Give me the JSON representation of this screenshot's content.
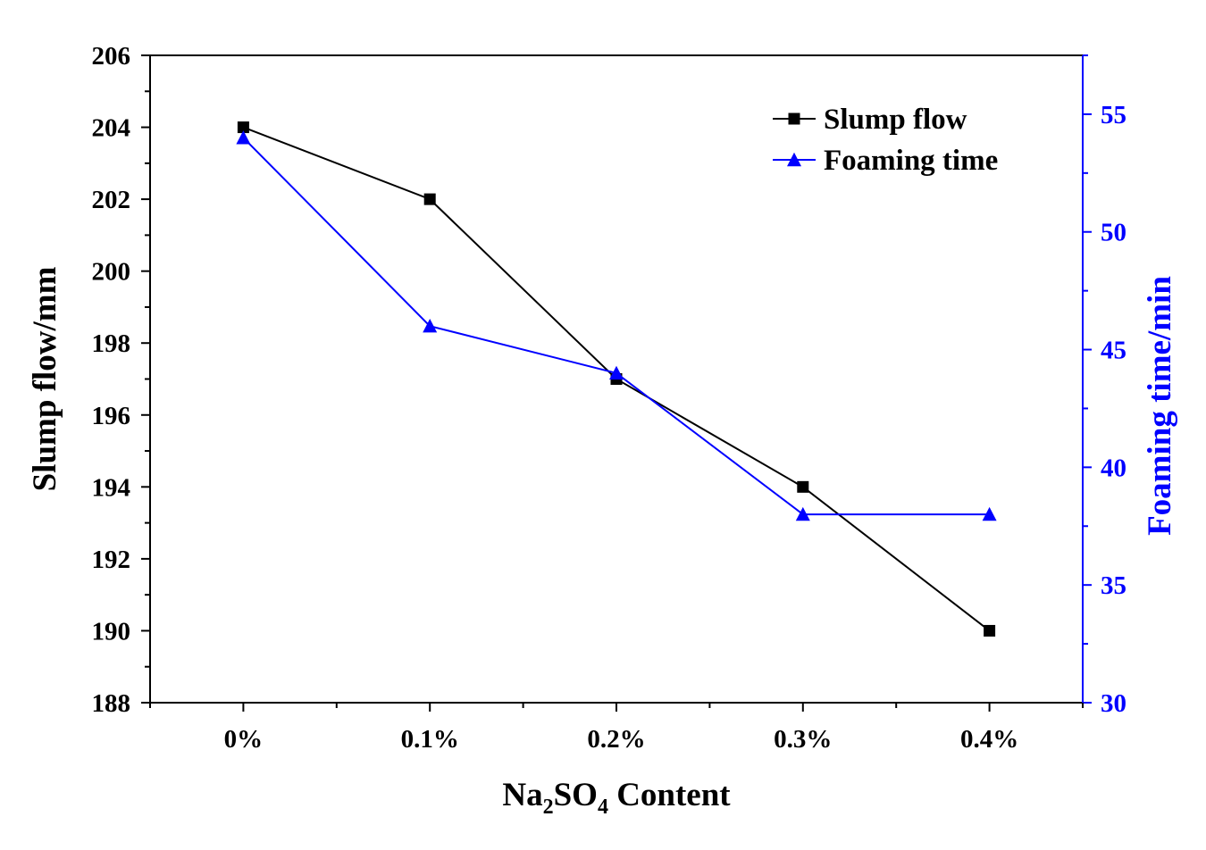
{
  "chart_data": {
    "type": "line",
    "title": "",
    "categories": [
      "0%",
      "0.1%",
      "0.2%",
      "0.3%",
      "0.4%"
    ],
    "x": [
      0,
      0.1,
      0.2,
      0.3,
      0.4
    ],
    "xlim": [
      -0.05,
      0.45
    ],
    "xlabel": {
      "main": "Na",
      "sub1": "2",
      "mid": "SO",
      "sub2": "4",
      "tail": " Content"
    },
    "left_axis": {
      "label": "Slump flow/mm",
      "ylim": [
        188,
        206
      ],
      "ticks": [
        188,
        190,
        192,
        194,
        196,
        198,
        200,
        202,
        204,
        206
      ],
      "minor_step": 1,
      "color": "#000000"
    },
    "right_axis": {
      "label": "Foaming time/min",
      "ylim": [
        30,
        57.5
      ],
      "ticks": [
        30,
        35,
        40,
        45,
        50,
        55
      ],
      "minor_step": 2.5,
      "color": "#0000ff"
    },
    "series": [
      {
        "name": "Slump flow",
        "axis": "left",
        "marker": "square",
        "color": "#000000",
        "values": [
          204,
          202,
          197,
          194,
          190
        ]
      },
      {
        "name": "Foaming time",
        "axis": "right",
        "marker": "triangle",
        "color": "#0000ff",
        "values": [
          54,
          46,
          44,
          38,
          38
        ]
      }
    ],
    "legend": {
      "position": "top-right"
    },
    "grid": false
  }
}
